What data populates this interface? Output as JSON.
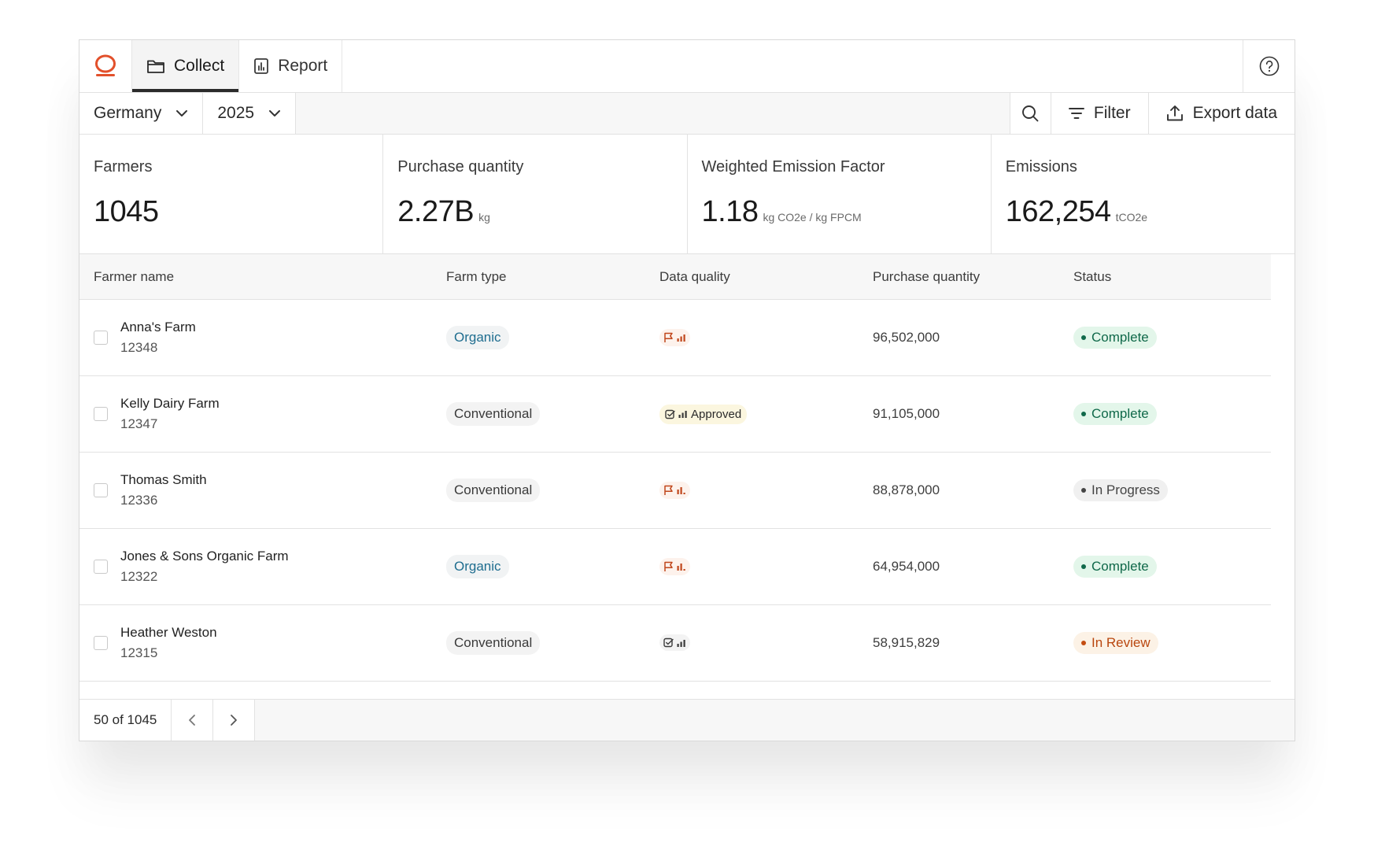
{
  "nav": {
    "tabs": [
      {
        "label": "Collect",
        "icon": "folder-icon",
        "active": true
      },
      {
        "label": "Report",
        "icon": "report-chart-icon",
        "active": false
      }
    ]
  },
  "toolbar": {
    "country": "Germany",
    "year": "2025",
    "filter_label": "Filter",
    "export_label": "Export data"
  },
  "stats": [
    {
      "label": "Farmers",
      "value": "1045",
      "unit": ""
    },
    {
      "label": "Purchase quantity",
      "value": "2.27B",
      "unit": "kg"
    },
    {
      "label": "Weighted Emission Factor",
      "value": "1.18",
      "unit": "kg CO2e / kg FPCM"
    },
    {
      "label": "Emissions",
      "value": "162,254",
      "unit": "tCO2e"
    }
  ],
  "table": {
    "columns": [
      "Farmer name",
      "Farm type",
      "Data quality",
      "Purchase quantity",
      "Status"
    ],
    "rows": [
      {
        "name": "Anna's Farm",
        "id": "12348",
        "type": "Organic",
        "dq_text": "",
        "qty": "96,502,000",
        "status": "Complete"
      },
      {
        "name": "Kelly Dairy Farm",
        "id": "12347",
        "type": "Conventional",
        "dq_text": "Approved",
        "qty": "91,105,000",
        "status": "Complete"
      },
      {
        "name": "Thomas Smith",
        "id": "12336",
        "type": "Conventional",
        "dq_text": "",
        "qty": "88,878,000",
        "status": "In Progress"
      },
      {
        "name": "Jones & Sons Organic Farm",
        "id": "12322",
        "type": "Organic",
        "dq_text": "",
        "qty": "64,954,000",
        "status": "Complete"
      },
      {
        "name": "Heather Weston",
        "id": "12315",
        "type": "Conventional",
        "dq_text": "",
        "qty": "58,915,829",
        "status": "In Review"
      }
    ]
  },
  "pagination": {
    "label": "50 of 1045"
  },
  "colors": {
    "brand": "#e2502b",
    "complete": "#10694a",
    "review": "#c44d11",
    "flag": "#c0461b"
  }
}
